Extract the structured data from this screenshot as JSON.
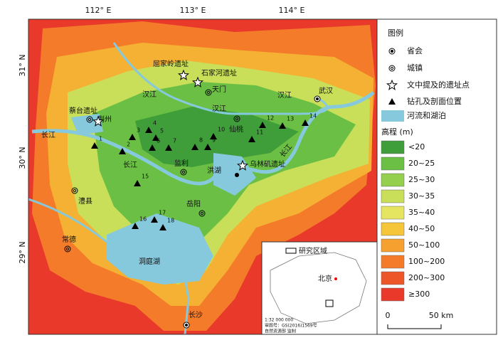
{
  "axes": {
    "top": [
      "112° E",
      "113° E",
      "114° E"
    ],
    "left": [
      "31° N",
      "30° N",
      "29° N"
    ]
  },
  "places": [
    "屈家岭遗址",
    "石家河遗址",
    "天门",
    "汉江",
    "汉江",
    "汉江",
    "荆州",
    "蔡台遗址",
    "长江",
    "长江",
    "长江",
    "仙桃",
    "武汉",
    "监利",
    "洪湖",
    "乌林矶遗址",
    "岳阳",
    "澧县",
    "常德",
    "洞庭湖",
    "长沙"
  ],
  "boreholes": [
    "1",
    "2",
    "3",
    "4",
    "5",
    "6",
    "7",
    "8",
    "9",
    "10",
    "11",
    "12",
    "13",
    "14",
    "15",
    "16",
    "17",
    "18"
  ],
  "legend": {
    "title": "图例",
    "items": [
      "省会",
      "城镇",
      "文中提及的遗址点",
      "钻孔及剖面位置",
      "河流和湖泊"
    ],
    "elevation_title": "高程 (m)",
    "elevation_classes": [
      "<20",
      "20~25",
      "25~30",
      "30~35",
      "35~40",
      "40~50",
      "50~100",
      "100~200",
      "200~300",
      "≥300"
    ]
  },
  "inset": {
    "label": "研究区域",
    "city": "北京",
    "scale_text": "1:32 000 000",
    "approval": "审图号：GS(2016)1569号",
    "maker": "自然资源部 监制"
  },
  "scale_bar": {
    "start": "0",
    "end": "50 km"
  }
}
